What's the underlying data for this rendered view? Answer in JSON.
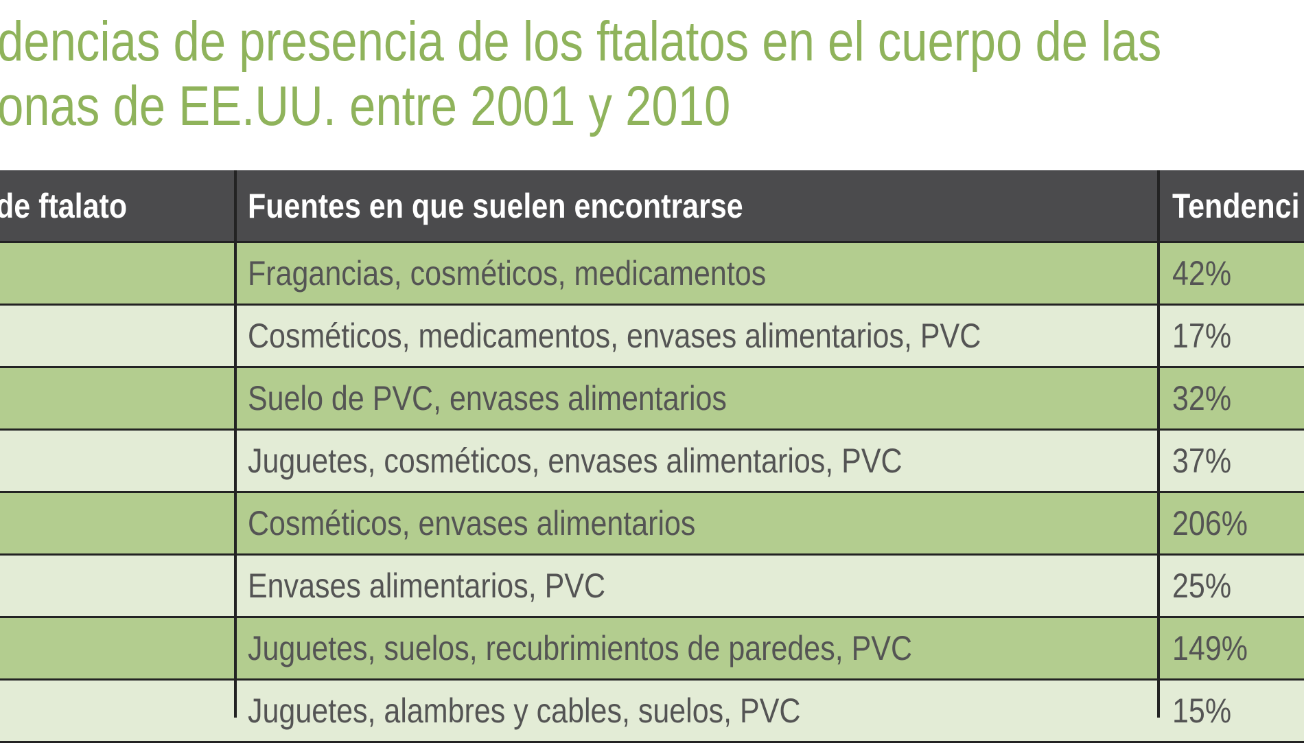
{
  "title": {
    "line1": "dencias de presencia de los ftalatos en el cuerpo de las",
    "line2": "onas de EE.UU. entre 2001 y 2010"
  },
  "table": {
    "headers": [
      "de ftalato",
      "Fuentes en que suelen encontrarse",
      "Tendenci"
    ],
    "rows": [
      {
        "type": "",
        "sources": "Fragancias, cosméticos, medicamentos",
        "trend": "42%"
      },
      {
        "type": "",
        "sources": "Cosméticos, medicamentos, envases alimentarios, PVC",
        "trend": "17%"
      },
      {
        "type": "",
        "sources": "Suelo de PVC, envases alimentarios",
        "trend": "32%"
      },
      {
        "type": "",
        "sources": "Juguetes, cosméticos, envases alimentarios, PVC",
        "trend": "37%"
      },
      {
        "type": "",
        "sources": "Cosméticos, envases alimentarios",
        "trend": "206%"
      },
      {
        "type": "",
        "sources": "Envases alimentarios, PVC",
        "trend": "25%"
      },
      {
        "type": "",
        "sources": "Juguetes, suelos, recubrimientos de paredes, PVC",
        "trend": "149%"
      },
      {
        "type": "",
        "sources": "Juguetes, alambres y cables, suelos, PVC",
        "trend": "15%"
      }
    ]
  },
  "colors": {
    "title_green": "#8fb35b",
    "header_bg": "#4b4b4d",
    "row_dark": "#b3cd8f",
    "row_light": "#e3ecd6",
    "text": "#545454"
  }
}
